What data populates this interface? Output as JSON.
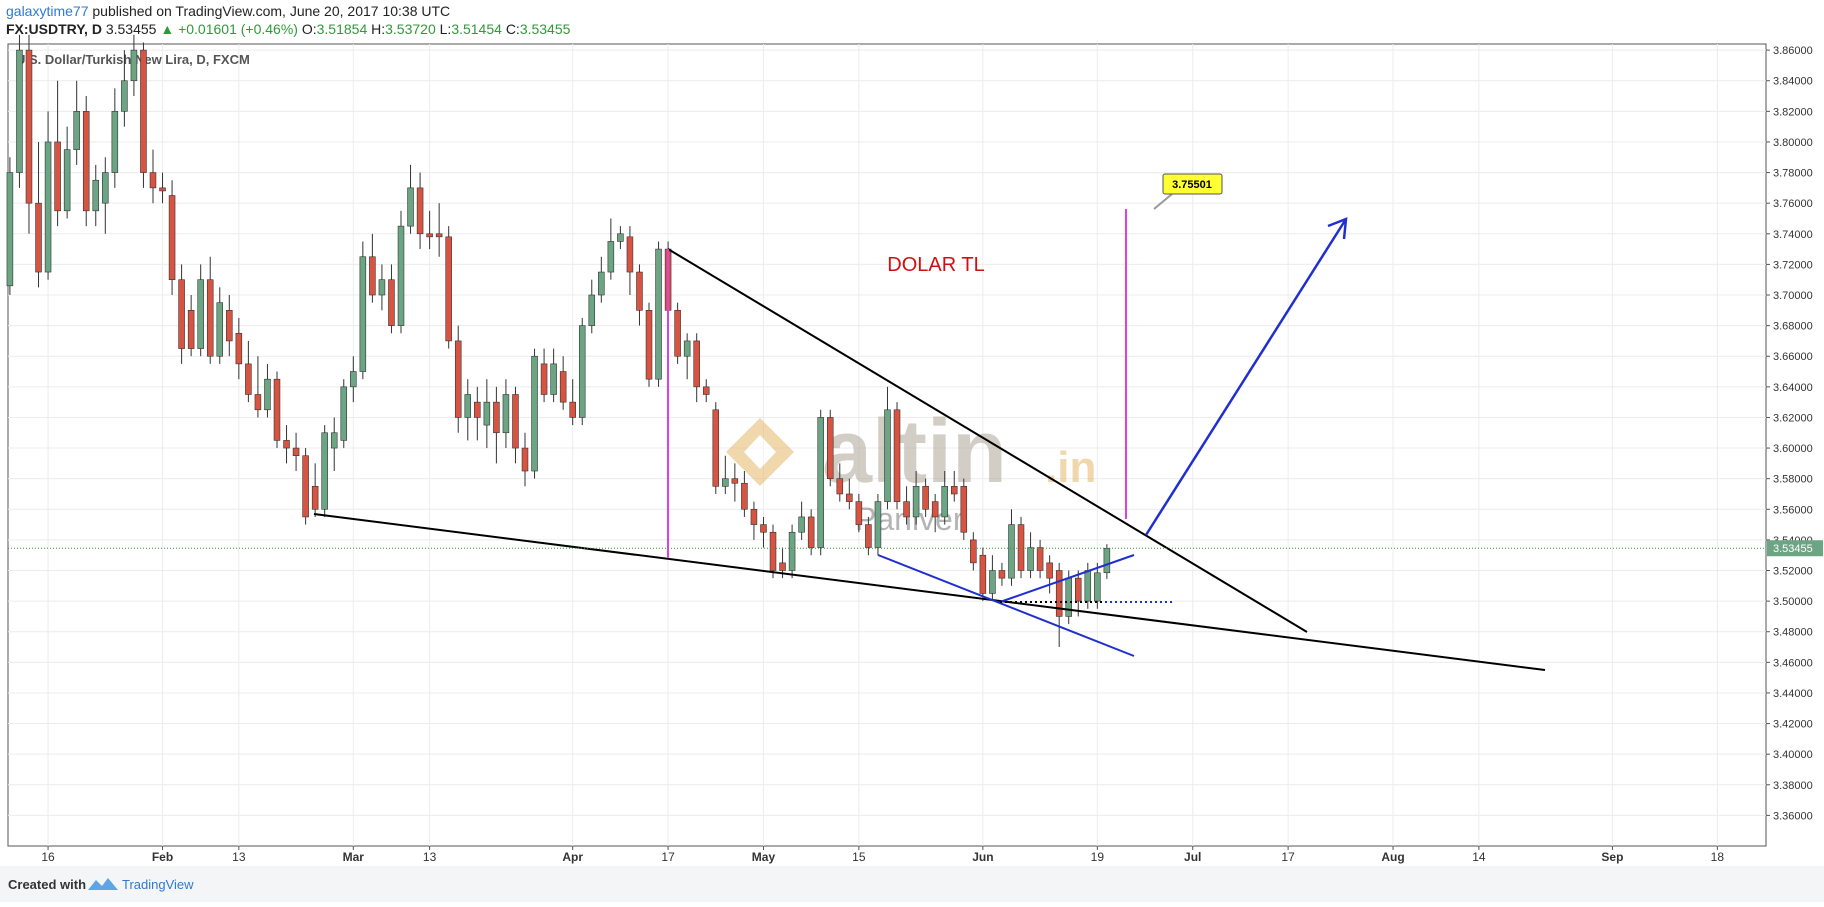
{
  "header": {
    "author": "galaxytime77",
    "published": "published on TradingView.com, June 20, 2017 10:38 UTC",
    "symbol": "FX:USDTRY, D",
    "price": "3.53455",
    "change": "▲ +0.01601 (+0.46%)",
    "o_label": "O:",
    "o": "3.51854",
    "h_label": "H:",
    "h": "3.53720",
    "l_label": "L:",
    "l": "3.51454",
    "c_label": "C:",
    "c": "3.53455"
  },
  "chart_data": {
    "type": "candlestick",
    "title": "U.S. Dollar/Turkish New Lira, D, FXCM",
    "up_color": "#6ba583",
    "down_color": "#d75442",
    "open": [
      3.706,
      3.78,
      3.86,
      3.76,
      3.715,
      3.8,
      3.755,
      3.795,
      3.82,
      3.755,
      3.76,
      3.78,
      3.82,
      3.84,
      3.86,
      3.78,
      3.77,
      3.765,
      3.71,
      3.69,
      3.665,
      3.71,
      3.66,
      3.69,
      3.675,
      3.655,
      3.635,
      3.625,
      3.645,
      3.605,
      3.6,
      3.595,
      3.575,
      3.56,
      3.6,
      3.605,
      3.64,
      3.65,
      3.725,
      3.7,
      3.71,
      3.68,
      3.745,
      3.77,
      3.74,
      3.74,
      3.738,
      3.67,
      3.62,
      3.63,
      3.615,
      3.63,
      3.61,
      3.635,
      3.6,
      3.585,
      3.655,
      3.635,
      3.65,
      3.63,
      3.62,
      3.68,
      3.7,
      3.715,
      3.735,
      3.738,
      3.715,
      3.69,
      3.645,
      3.73,
      3.69,
      3.66,
      3.67,
      3.64,
      3.625,
      3.575,
      3.58,
      3.577,
      3.56,
      3.55,
      3.545,
      3.525,
      3.52,
      3.545,
      3.555,
      3.535,
      3.62,
      3.58,
      3.57,
      3.565,
      3.55,
      3.535,
      3.565,
      3.625,
      3.565,
      3.555,
      3.575,
      3.565,
      3.555,
      3.575,
      3.575,
      3.54,
      3.53,
      3.505,
      3.52,
      3.515,
      3.55,
      3.52,
      3.535,
      3.525,
      3.52,
      3.49,
      3.515,
      3.5,
      3.5,
      3.51854
    ],
    "high": [
      3.79,
      3.87,
      3.87,
      3.8,
      3.82,
      3.84,
      3.81,
      3.84,
      3.83,
      3.785,
      3.79,
      3.835,
      3.86,
      3.87,
      3.865,
      3.795,
      3.78,
      3.775,
      3.72,
      3.7,
      3.72,
      3.725,
      3.705,
      3.7,
      3.685,
      3.67,
      3.66,
      3.655,
      3.65,
      3.615,
      3.61,
      3.6,
      3.59,
      3.615,
      3.62,
      3.645,
      3.66,
      3.735,
      3.74,
      3.72,
      3.72,
      3.755,
      3.785,
      3.78,
      3.755,
      3.76,
      3.745,
      3.68,
      3.645,
      3.64,
      3.645,
      3.64,
      3.645,
      3.64,
      3.61,
      3.665,
      3.665,
      3.665,
      3.66,
      3.645,
      3.685,
      3.71,
      3.725,
      3.75,
      3.745,
      3.745,
      3.72,
      3.695,
      3.735,
      3.735,
      3.695,
      3.675,
      3.675,
      3.645,
      3.63,
      3.595,
      3.59,
      3.585,
      3.565,
      3.555,
      3.55,
      3.535,
      3.55,
      3.565,
      3.56,
      3.625,
      3.625,
      3.59,
      3.58,
      3.57,
      3.555,
      3.57,
      3.64,
      3.63,
      3.575,
      3.585,
      3.58,
      3.57,
      3.585,
      3.585,
      3.58,
      3.545,
      3.535,
      3.53,
      3.525,
      3.56,
      3.555,
      3.545,
      3.54,
      3.53,
      3.525,
      3.52,
      3.52,
      3.525,
      3.525,
      3.5372
    ],
    "low": [
      3.7,
      3.77,
      3.74,
      3.705,
      3.71,
      3.745,
      3.75,
      3.785,
      3.745,
      3.745,
      3.74,
      3.77,
      3.81,
      3.83,
      3.77,
      3.76,
      3.76,
      3.7,
      3.655,
      3.66,
      3.66,
      3.655,
      3.655,
      3.66,
      3.645,
      3.63,
      3.62,
      3.62,
      3.6,
      3.59,
      3.585,
      3.55,
      3.555,
      3.555,
      3.585,
      3.6,
      3.63,
      3.645,
      3.695,
      3.69,
      3.675,
      3.675,
      3.74,
      3.73,
      3.73,
      3.725,
      3.665,
      3.61,
      3.605,
      3.605,
      3.6,
      3.59,
      3.6,
      3.59,
      3.575,
      3.58,
      3.63,
      3.63,
      3.625,
      3.615,
      3.615,
      3.675,
      3.695,
      3.71,
      3.73,
      3.7,
      3.68,
      3.64,
      3.64,
      3.685,
      3.655,
      3.645,
      3.63,
      3.63,
      3.57,
      3.57,
      3.565,
      3.555,
      3.54,
      3.535,
      3.515,
      3.515,
      3.515,
      3.54,
      3.53,
      3.53,
      3.575,
      3.565,
      3.56,
      3.545,
      3.53,
      3.53,
      3.56,
      3.56,
      3.55,
      3.55,
      3.555,
      3.545,
      3.55,
      3.565,
      3.54,
      3.52,
      3.5,
      3.5,
      3.51,
      3.51,
      3.515,
      3.515,
      3.515,
      3.505,
      3.47,
      3.485,
      3.49,
      3.495,
      3.495,
      3.51454
    ],
    "close": [
      3.78,
      3.86,
      3.76,
      3.715,
      3.8,
      3.755,
      3.795,
      3.82,
      3.755,
      3.775,
      3.78,
      3.82,
      3.84,
      3.86,
      3.78,
      3.77,
      3.768,
      3.71,
      3.665,
      3.665,
      3.71,
      3.66,
      3.695,
      3.67,
      3.655,
      3.635,
      3.625,
      3.645,
      3.605,
      3.6,
      3.595,
      3.555,
      3.56,
      3.61,
      3.61,
      3.64,
      3.65,
      3.725,
      3.7,
      3.71,
      3.68,
      3.745,
      3.77,
      3.74,
      3.738,
      3.738,
      3.67,
      3.62,
      3.635,
      3.62,
      3.63,
      3.61,
      3.635,
      3.6,
      3.585,
      3.66,
      3.635,
      3.655,
      3.63,
      3.62,
      3.68,
      3.7,
      3.715,
      3.735,
      3.74,
      3.715,
      3.69,
      3.645,
      3.73,
      3.69,
      3.66,
      3.67,
      3.64,
      3.635,
      3.575,
      3.58,
      3.577,
      3.56,
      3.55,
      3.545,
      3.52,
      3.52,
      3.545,
      3.555,
      3.535,
      3.62,
      3.58,
      3.57,
      3.565,
      3.55,
      3.535,
      3.565,
      3.625,
      3.565,
      3.555,
      3.575,
      3.56,
      3.555,
      3.575,
      3.57,
      3.545,
      3.525,
      3.505,
      3.52,
      3.515,
      3.55,
      3.52,
      3.535,
      3.52,
      3.515,
      3.49,
      3.515,
      3.5,
      3.52,
      3.5185,
      3.53455
    ],
    "xlim": [
      -0.2,
      184.1
    ],
    "xticks": [
      {
        "value": 4,
        "label": "16"
      },
      {
        "value": 16,
        "label": "Feb"
      },
      {
        "value": 24,
        "label": "13"
      },
      {
        "value": 36,
        "label": "Mar"
      },
      {
        "value": 44,
        "label": "13"
      },
      {
        "value": 59,
        "label": "Apr"
      },
      {
        "value": 69,
        "label": "17"
      },
      {
        "value": 79,
        "label": "May"
      },
      {
        "value": 89,
        "label": "15"
      },
      {
        "value": 102,
        "label": "Jun"
      },
      {
        "value": 114,
        "label": "19"
      },
      {
        "value": 124,
        "label": "Jul"
      },
      {
        "value": 134,
        "label": "17"
      },
      {
        "value": 145,
        "label": "Aug"
      },
      {
        "value": 154,
        "label": "14"
      },
      {
        "value": 168,
        "label": "Sep"
      },
      {
        "value": 179,
        "label": "18"
      }
    ],
    "ylim": [
      3.34,
      3.864
    ],
    "yticks": [
      {
        "value": 3.36,
        "label": "3.36000"
      },
      {
        "value": 3.38,
        "label": "3.38000"
      },
      {
        "value": 3.4,
        "label": "3.40000"
      },
      {
        "value": 3.42,
        "label": "3.42000"
      },
      {
        "value": 3.44,
        "label": "3.44000"
      },
      {
        "value": 3.46,
        "label": "3.46000"
      },
      {
        "value": 3.48,
        "label": "3.48000"
      },
      {
        "value": 3.5,
        "label": "3.50000"
      },
      {
        "value": 3.52,
        "label": "3.52000"
      },
      {
        "value": 3.54,
        "label": "3.54000"
      },
      {
        "value": 3.56,
        "label": "3.56000"
      },
      {
        "value": 3.58,
        "label": "3.58000"
      },
      {
        "value": 3.6,
        "label": "3.60000"
      },
      {
        "value": 3.62,
        "label": "3.62000"
      },
      {
        "value": 3.64,
        "label": "3.64000"
      },
      {
        "value": 3.66,
        "label": "3.66000"
      },
      {
        "value": 3.68,
        "label": "3.68000"
      },
      {
        "value": 3.7,
        "label": "3.70000"
      },
      {
        "value": 3.72,
        "label": "3.72000"
      },
      {
        "value": 3.74,
        "label": "3.74000"
      },
      {
        "value": 3.76,
        "label": "3.76000"
      },
      {
        "value": 3.78,
        "label": "3.78000"
      },
      {
        "value": 3.8,
        "label": "3.80000"
      },
      {
        "value": 3.82,
        "label": "3.82000"
      },
      {
        "value": 3.84,
        "label": "3.84000"
      },
      {
        "value": 3.86,
        "label": "3.86000"
      }
    ],
    "grid": true,
    "annotations": {
      "text": "DOLAR TL",
      "callout": "3.75501"
    },
    "watermark": {
      "brand": "altin",
      "suffix": ".in",
      "sub": "Paniver"
    }
  },
  "footer": {
    "created": "Created with",
    "brand": "TradingView"
  }
}
